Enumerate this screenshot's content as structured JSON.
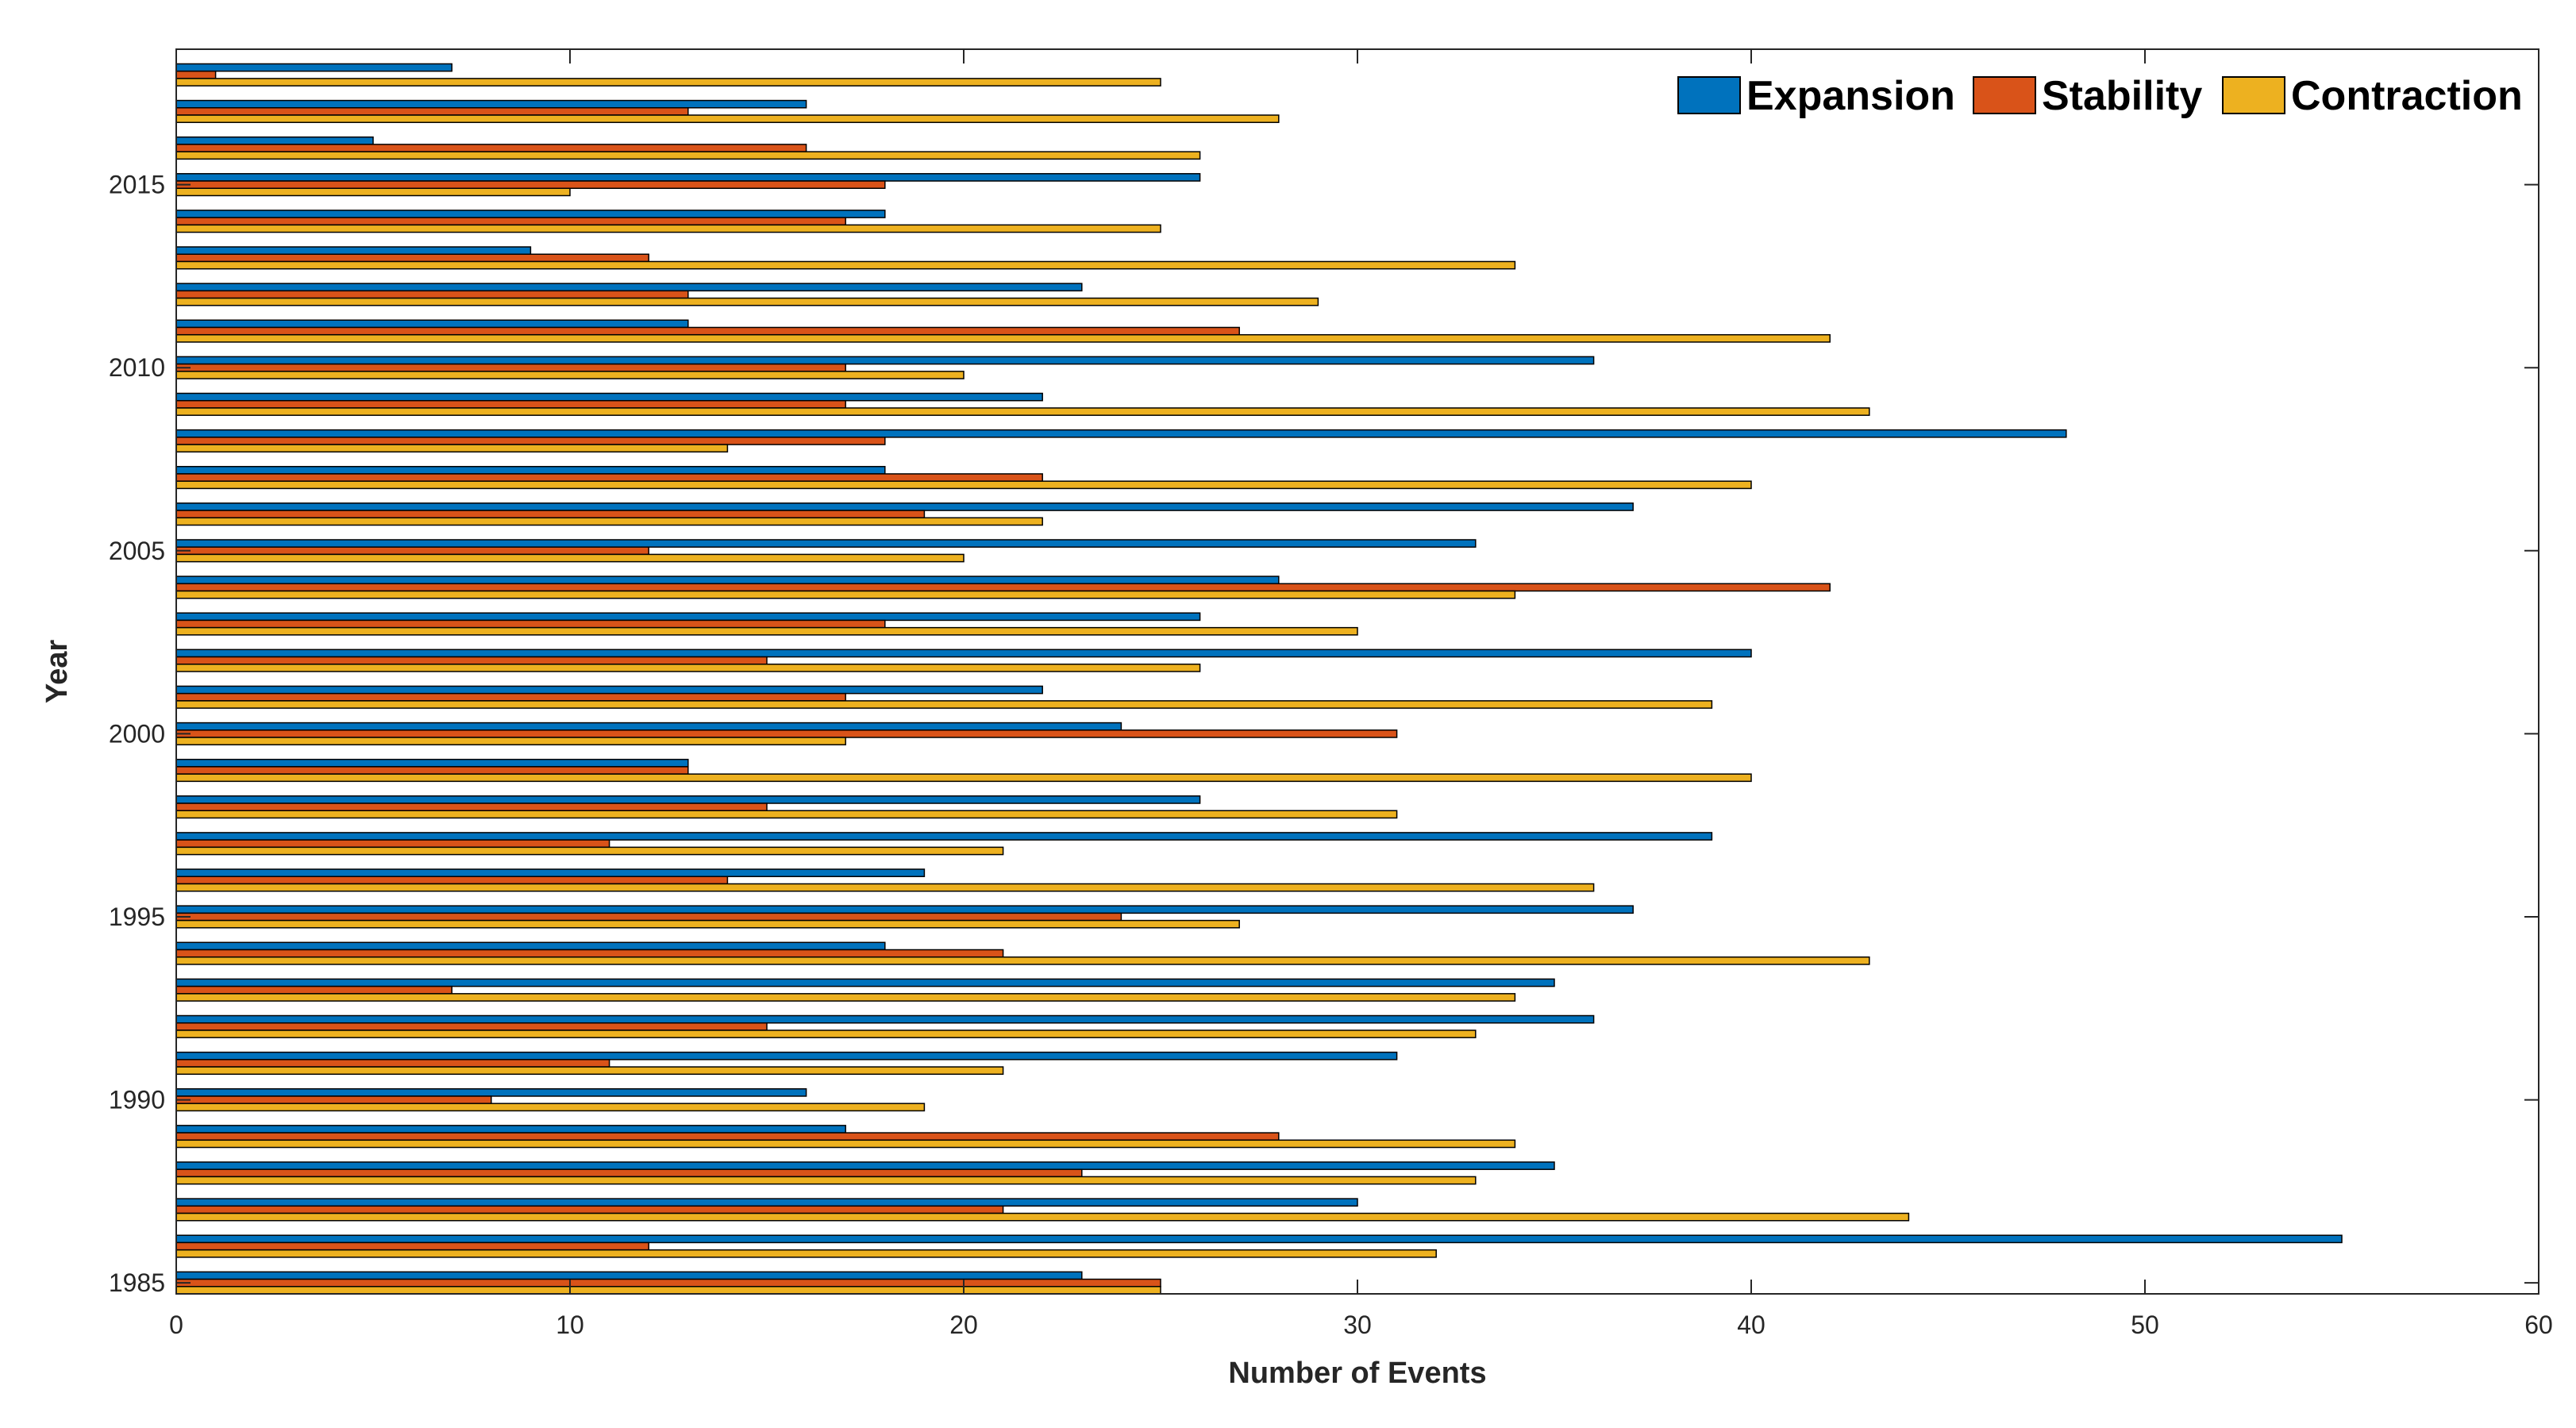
{
  "chart_data": {
    "type": "bar",
    "orientation": "horizontal",
    "title": "",
    "xlabel": "Number of Events",
    "ylabel": "Year",
    "xlim": [
      0,
      60
    ],
    "ylim": [
      1984.7,
      2018.7
    ],
    "grid": false,
    "legend_position": "top-right",
    "x_ticks": [
      0,
      10,
      20,
      30,
      40,
      50,
      60
    ],
    "y_ticks": [
      1985,
      1990,
      1995,
      2000,
      2005,
      2010,
      2015
    ],
    "years": [
      1985,
      1986,
      1987,
      1988,
      1989,
      1990,
      1991,
      1992,
      1993,
      1994,
      1995,
      1996,
      1997,
      1998,
      1999,
      2000,
      2001,
      2002,
      2003,
      2004,
      2005,
      2006,
      2007,
      2008,
      2009,
      2010,
      2011,
      2012,
      2013,
      2014,
      2015,
      2016,
      2017,
      2018
    ],
    "series": [
      {
        "name": "Expansion",
        "color": "#0072BD",
        "values": [
          23,
          55,
          30,
          35,
          17,
          16,
          31,
          36,
          35,
          18,
          37,
          19,
          39,
          26,
          13,
          24,
          22,
          40,
          26,
          28,
          33,
          37,
          18,
          48,
          22,
          36,
          13,
          23,
          9,
          18,
          26,
          5,
          16,
          7
        ]
      },
      {
        "name": "Stability",
        "color": "#D95319",
        "values": [
          25,
          12,
          21,
          23,
          28,
          8,
          11,
          15,
          7,
          21,
          24,
          14,
          11,
          15,
          13,
          31,
          17,
          15,
          18,
          42,
          12,
          19,
          22,
          18,
          17,
          17,
          27,
          13,
          12,
          17,
          18,
          16,
          13,
          1
        ]
      },
      {
        "name": "Contraction",
        "color": "#EDB120",
        "values": [
          25,
          32,
          44,
          33,
          34,
          19,
          21,
          33,
          34,
          43,
          27,
          36,
          21,
          31,
          40,
          17,
          39,
          26,
          30,
          34,
          20,
          22,
          40,
          14,
          43,
          20,
          42,
          29,
          34,
          25,
          10,
          26,
          28,
          25
        ]
      }
    ]
  }
}
